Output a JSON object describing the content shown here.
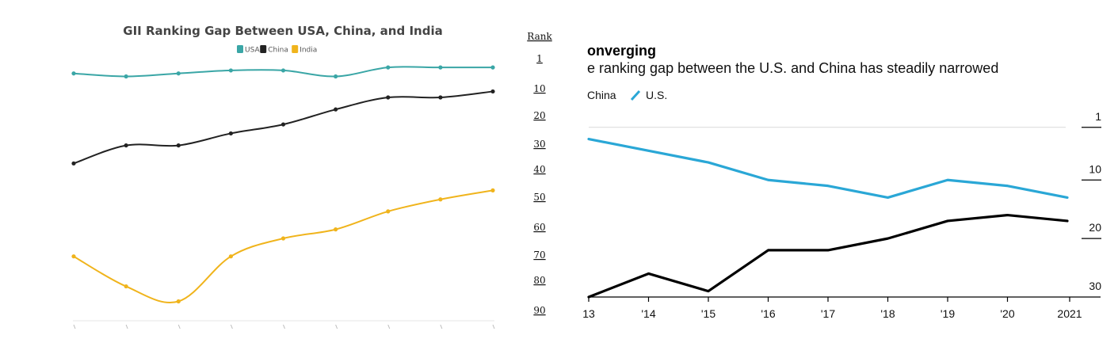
{
  "chart_data": [
    {
      "type": "line",
      "title": "GII Ranking Gap Between USA, China, and India",
      "legend_position": "top-center",
      "y_reversed": true,
      "ylim": [
        1,
        90
      ],
      "x_count": 9,
      "series": [
        {
          "name": "USA",
          "color": "#3aa6a6",
          "values": [
            7,
            8,
            7,
            6,
            6,
            8,
            5,
            5,
            5
          ]
        },
        {
          "name": "China",
          "color": "#222222",
          "values": [
            37,
            31,
            31,
            27,
            24,
            19,
            15,
            15,
            13
          ]
        },
        {
          "name": "India",
          "color": "#f0b41c",
          "values": [
            68,
            78,
            83,
            68,
            62,
            59,
            53,
            49,
            46
          ]
        }
      ]
    },
    {
      "type": "line",
      "title": "onverging",
      "subtitle": "e ranking gap between the U.S. and China has steadily narrowed",
      "legend_position": "top-left",
      "x_tick_labels": [
        "13",
        "'14",
        "'15",
        "'16",
        "'17",
        "'18",
        "'19",
        "'20",
        "2021"
      ],
      "y_reversed": true,
      "ylim": [
        -1,
        30
      ],
      "y_ticks": [
        1,
        10,
        20,
        30
      ],
      "series": [
        {
          "name": "China",
          "color": "#000000",
          "values": [
            30,
            26,
            29,
            22,
            22,
            20,
            17,
            16,
            17
          ]
        },
        {
          "name": "U.S.",
          "color": "#2aa7d6",
          "values": [
            3,
            5,
            7,
            10,
            11,
            13,
            10,
            11,
            13
          ]
        }
      ]
    }
  ],
  "rank_scale": {
    "header": "Rank",
    "labels": [
      "1",
      "10",
      "20",
      "30",
      "40",
      "50",
      "60",
      "70",
      "80",
      "90"
    ]
  }
}
